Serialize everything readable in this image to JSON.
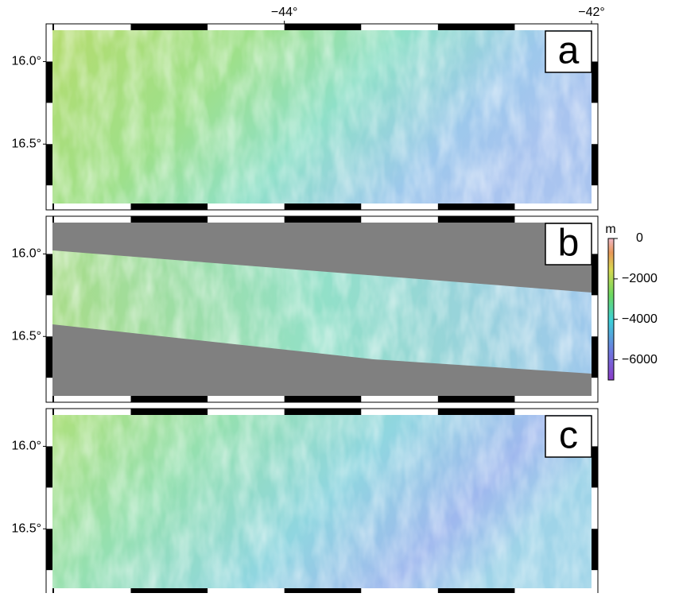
{
  "x_ticks": [
    {
      "value": -44,
      "label": "−44°"
    },
    {
      "value": -42,
      "label": "−42°"
    }
  ],
  "xlim": [
    -45.51,
    -42
  ],
  "frame_interval_x": 0.5,
  "y_ticks": [
    {
      "value": 16,
      "label": "16.0°"
    },
    {
      "value": 16.5,
      "label": "16.5°"
    }
  ],
  "ylim": [
    15.81,
    16.86
  ],
  "frame_interval_y": 0.25,
  "panels": [
    {
      "label": "a"
    },
    {
      "label": "b"
    },
    {
      "label": "c"
    }
  ],
  "colorbar": {
    "unit": "m",
    "lim": [
      -7000,
      0
    ],
    "ticks": [
      0,
      {
        "value": -2000,
        "label": "−2000"
      },
      {
        "value": -4000,
        "label": "−4000"
      },
      {
        "value": -6000,
        "label": "−6000"
      }
    ]
  }
}
